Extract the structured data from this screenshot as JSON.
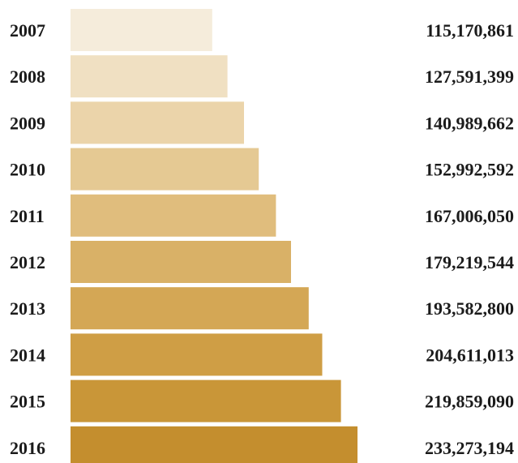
{
  "chart_data": {
    "type": "bar",
    "orientation": "horizontal",
    "categories": [
      "2007",
      "2008",
      "2009",
      "2010",
      "2011",
      "2012",
      "2013",
      "2014",
      "2015",
      "2016"
    ],
    "values": [
      115170861,
      127591399,
      140989662,
      152992592,
      167006050,
      179219544,
      193582800,
      204611013,
      219859090,
      233273194
    ],
    "value_labels": [
      "115,170,861",
      "127,591,399",
      "140,989,662",
      "152,992,592",
      "167,006,050",
      "179,219,544",
      "193,582,800",
      "204,611,013",
      "219,859,090",
      "233,273,194"
    ],
    "bar_colors": [
      "#f5ecdb",
      "#f0e0c2",
      "#ebd4aa",
      "#e5c993",
      "#e0bd7d",
      "#d9b167",
      "#d4a755",
      "#cf9e45",
      "#c99638",
      "#c48e2e"
    ],
    "title": "",
    "xlabel": "",
    "ylabel": "",
    "grid": false
  }
}
